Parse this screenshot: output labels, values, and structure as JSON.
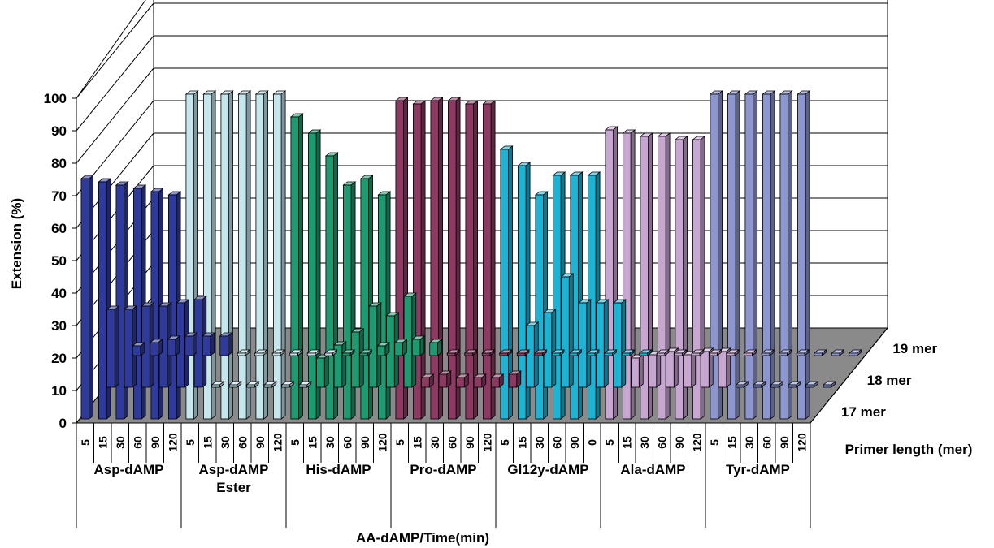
{
  "chart_data": {
    "type": "bar",
    "subtype": "3d-clustered-rows",
    "title": "",
    "ylabel": "Extension (%)",
    "xlabel": "AA-dAMP/Time(min)",
    "zlabel": "Primer length (mer)",
    "ylim": [
      0,
      100
    ],
    "yticks": [
      "0",
      "10",
      "20",
      "30",
      "40",
      "50",
      "60",
      "70",
      "80",
      "90",
      "100"
    ],
    "grid": true,
    "groups": [
      {
        "name": "Asp-dAMP",
        "times": [
          "5",
          "15",
          "30",
          "60",
          "90",
          "120"
        ],
        "color": "#2e3a9c"
      },
      {
        "name": "Asp-dAMP Ester",
        "times": [
          "5",
          "15",
          "30",
          "60",
          "90",
          "120"
        ],
        "color": "#c6e6ee"
      },
      {
        "name": "His-dAMP",
        "times": [
          "5",
          "15",
          "30",
          "60",
          "90",
          "120"
        ],
        "color": "#1e9a72"
      },
      {
        "name": "Pro-dAMP",
        "times": [
          "5",
          "15",
          "30",
          "60",
          "90",
          "120"
        ],
        "color": "#8c3a62"
      },
      {
        "name": "Gl12y-dAMP",
        "times": [
          "5",
          "15",
          "30",
          "60",
          "90",
          "0"
        ],
        "color": "#1cb4d4"
      },
      {
        "name": "Ala-dAMP",
        "times": [
          "5",
          "15",
          "30",
          "60",
          "90",
          "120"
        ],
        "color": "#c8a6d2"
      },
      {
        "name": "Tyr-dAMP",
        "times": [
          "5",
          "15",
          "30",
          "60",
          "90",
          "120"
        ],
        "color": "#8c96d0"
      }
    ],
    "series": [
      {
        "name": "19 mer",
        "values": [
          3,
          4,
          5,
          6,
          6,
          6,
          0,
          0,
          0,
          0,
          0,
          0,
          0,
          0,
          3,
          4,
          5,
          4,
          0,
          0,
          0,
          0,
          0,
          0,
          0,
          0,
          0,
          0,
          0,
          0,
          0,
          0,
          0,
          0,
          0,
          0,
          0,
          0,
          0,
          0,
          0,
          0
        ]
      },
      {
        "name": "18 mer",
        "values": [
          24,
          24,
          25,
          25,
          26,
          27,
          0,
          0,
          0,
          0,
          0,
          0,
          9,
          13,
          17,
          25,
          22,
          28,
          3,
          4,
          3,
          3,
          3,
          4,
          19,
          23,
          34,
          26,
          26,
          26,
          9,
          10,
          11,
          10,
          11,
          11,
          0,
          0,
          0,
          0,
          0,
          0
        ]
      },
      {
        "name": "17 mer",
        "values": [
          74,
          73,
          72,
          71,
          70,
          69,
          100,
          100,
          100,
          100,
          100,
          100,
          93,
          88,
          81,
          72,
          74,
          69,
          98,
          97,
          98,
          98,
          97,
          97,
          83,
          78,
          69,
          75,
          75,
          75,
          89,
          88,
          87,
          87,
          86,
          86,
          100,
          100,
          100,
          100,
          100,
          100
        ]
      }
    ]
  }
}
